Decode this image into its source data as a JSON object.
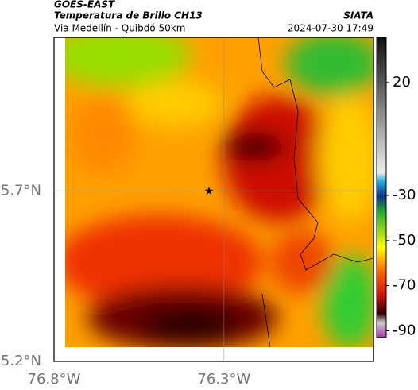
{
  "header": {
    "satellite": "GOES-EAST",
    "product": "Temperatura de Brillo CH13",
    "region": "Via Medellín - Quibdó 50km",
    "source": "SIATA",
    "datetime": "2024-07-30 17:49"
  },
  "map": {
    "lon_lim": [
      -76.8,
      -75.86
    ],
    "lat_lim": [
      5.2,
      6.15
    ],
    "lon_ticks": [
      {
        "value": -76.8,
        "label": "76.8°W"
      },
      {
        "value": -76.3,
        "label": "76.3°W"
      }
    ],
    "lat_ticks": [
      {
        "value": 5.2,
        "label": "5.2°N"
      },
      {
        "value": 5.7,
        "label": "5.7°N"
      }
    ]
  },
  "colorbar": {
    "lim": [
      -93,
      40
    ],
    "ticks": [
      20,
      -30,
      -50,
      -70,
      -90
    ]
  }
}
